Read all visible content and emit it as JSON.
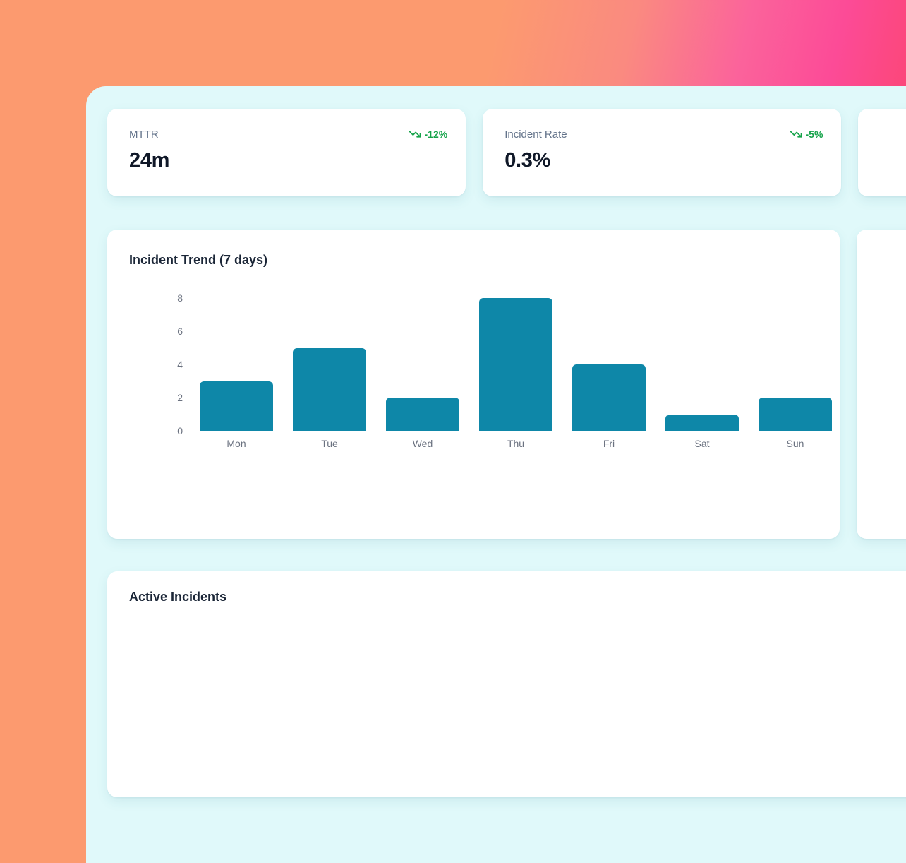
{
  "stats": [
    {
      "label": "MTTR",
      "value": "24m",
      "trend": "-12%",
      "trend_direction": "down"
    },
    {
      "label": "Incident Rate",
      "value": "0.3%",
      "trend": "-5%",
      "trend_direction": "down"
    }
  ],
  "active_incidents": {
    "title": "Active Incidents"
  },
  "chart_data": {
    "type": "bar",
    "title": "Incident Trend (7 days)",
    "categories": [
      "Mon",
      "Tue",
      "Wed",
      "Thu",
      "Fri",
      "Sat",
      "Sun"
    ],
    "values": [
      3,
      5,
      2,
      8,
      4,
      1,
      2
    ],
    "yticks": [
      0,
      2,
      4,
      6,
      8
    ],
    "ylim": [
      0,
      8
    ],
    "xlabel": "",
    "ylabel": "",
    "grid": false,
    "legend": false,
    "bar_color": "#0e87a8"
  },
  "colors": {
    "bar_teal": "#0e87a8",
    "trend_green": "#16a34a",
    "panel_bg": "#e0f9fa",
    "card_bg": "#ffffff",
    "bg_gradient": [
      "#fc9a6f",
      "#fc4b97",
      "#fa4350"
    ],
    "title_dark": "#1b2637",
    "value_dark": "#101828",
    "label_gray": "#64748b",
    "tick_gray": "#6b7280"
  }
}
